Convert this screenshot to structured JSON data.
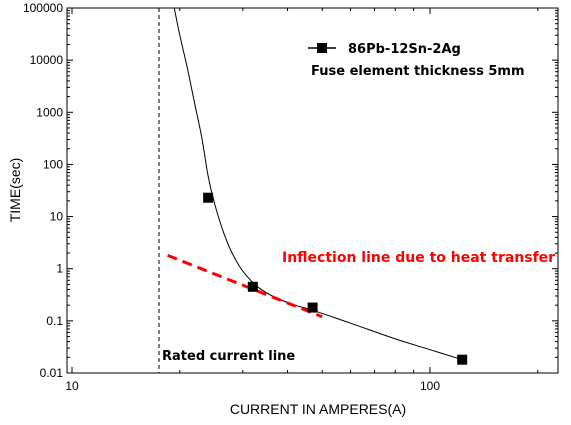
{
  "chart_data": {
    "type": "scatter",
    "xlabel": "CURRENT IN AMPERES(A)",
    "ylabel": "TIME(sec)",
    "xscale": "log",
    "yscale": "log",
    "xlim": [
      10,
      250
    ],
    "ylim": [
      0.01,
      100000
    ],
    "x_ticks": [
      "10",
      "100"
    ],
    "y_ticks": [
      "0.01",
      "0.1",
      "1",
      "10",
      "100",
      "1000",
      "10000",
      "100000"
    ],
    "series": [
      {
        "name": "86Pb-12Sn-2Ag",
        "marker": "square",
        "color": "#000000",
        "points": [
          {
            "x": 24,
            "y": 23
          },
          {
            "x": 32,
            "y": 0.45
          },
          {
            "x": 47,
            "y": 0.18
          },
          {
            "x": 123,
            "y": 0.018
          }
        ]
      }
    ],
    "fit_curve": [
      {
        "x": 19.3,
        "y": 100000
      },
      {
        "x": 20,
        "y": 30000
      },
      {
        "x": 21,
        "y": 7000
      },
      {
        "x": 22,
        "y": 1500
      },
      {
        "x": 23,
        "y": 350
      },
      {
        "x": 24,
        "y": 60
      },
      {
        "x": 25,
        "y": 18
      },
      {
        "x": 26.5,
        "y": 5
      },
      {
        "x": 28,
        "y": 2
      },
      {
        "x": 30,
        "y": 0.9
      },
      {
        "x": 33,
        "y": 0.45
      },
      {
        "x": 37,
        "y": 0.28
      },
      {
        "x": 42,
        "y": 0.2
      },
      {
        "x": 47,
        "y": 0.16
      },
      {
        "x": 60,
        "y": 0.09
      },
      {
        "x": 80,
        "y": 0.045
      },
      {
        "x": 100,
        "y": 0.028
      },
      {
        "x": 123,
        "y": 0.018
      }
    ],
    "inflection_line": [
      {
        "x": 18.5,
        "y": 1.8
      },
      {
        "x": 50,
        "y": 0.12
      }
    ],
    "rated_current_x": 17.5,
    "legend": {
      "entries": [
        {
          "label": "86Pb-12Sn-2Ag",
          "subtitle": "Fuse element thickness 5mm"
        }
      ],
      "placement": "top-right"
    },
    "annotations": {
      "inflection": "Inflection line due to heat transfer",
      "rated": "Rated current line"
    },
    "colors": {
      "annotation": "#ff0000",
      "data": "#000000"
    }
  }
}
